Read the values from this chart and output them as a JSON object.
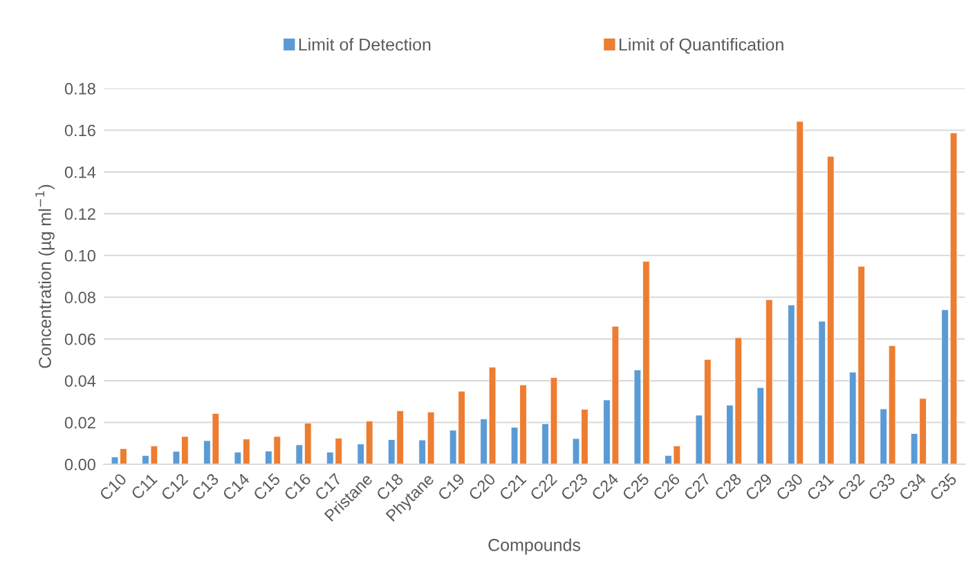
{
  "chart_data": {
    "type": "bar",
    "xlabel": "Compounds",
    "ylabel": "Concentration (µg ml$^{−1}$)",
    "categories": [
      "C10",
      "C11",
      "C12",
      "C13",
      "C14",
      "C15",
      "C16",
      "C17",
      "Pristane",
      "C18",
      "Phytane",
      "C19",
      "C20",
      "C21",
      "C22",
      "C23",
      "C24",
      "C25",
      "C26",
      "C27",
      "C28",
      "C29",
      "C30",
      "C31",
      "C32",
      "C33",
      "C34",
      "C35"
    ],
    "series": [
      {
        "name": "Limit of Detection",
        "color": "#5b9bd5",
        "values": [
          0.0035,
          0.0042,
          0.0062,
          0.0113,
          0.0058,
          0.0063,
          0.0093,
          0.0058,
          0.0097,
          0.0118,
          0.0116,
          0.0163,
          0.0217,
          0.0177,
          0.0194,
          0.0123,
          0.0308,
          0.0452,
          0.0042,
          0.0235,
          0.0283,
          0.0367,
          0.0763,
          0.0685,
          0.0441,
          0.0265,
          0.0147,
          0.074
        ]
      },
      {
        "name": "Limit of Quantification",
        "color": "#ed7d31",
        "values": [
          0.0075,
          0.0088,
          0.0133,
          0.0243,
          0.0121,
          0.0133,
          0.0197,
          0.0125,
          0.0207,
          0.0256,
          0.025,
          0.035,
          0.0465,
          0.038,
          0.0415,
          0.0263,
          0.0661,
          0.0972,
          0.0088,
          0.0502,
          0.0606,
          0.0788,
          0.1642,
          0.1475,
          0.0948,
          0.0568,
          0.0315,
          0.1587
        ]
      }
    ],
    "ylim": [
      0,
      0.18
    ],
    "yticks": [
      {
        "value": 0,
        "label": "0.00"
      },
      {
        "value": 0.02,
        "label": "0.02"
      },
      {
        "value": 0.04,
        "label": "0.04"
      },
      {
        "value": 0.06,
        "label": "0.06"
      },
      {
        "value": 0.08,
        "label": "0.08"
      },
      {
        "value": 0.1,
        "label": "0.10"
      },
      {
        "value": 0.12,
        "label": "0.12"
      },
      {
        "value": 0.14,
        "label": "0.14"
      },
      {
        "value": 0.16,
        "label": "0.16"
      },
      {
        "value": 0.18,
        "label": "0.18"
      }
    ],
    "grid": "y",
    "legend": "top"
  }
}
